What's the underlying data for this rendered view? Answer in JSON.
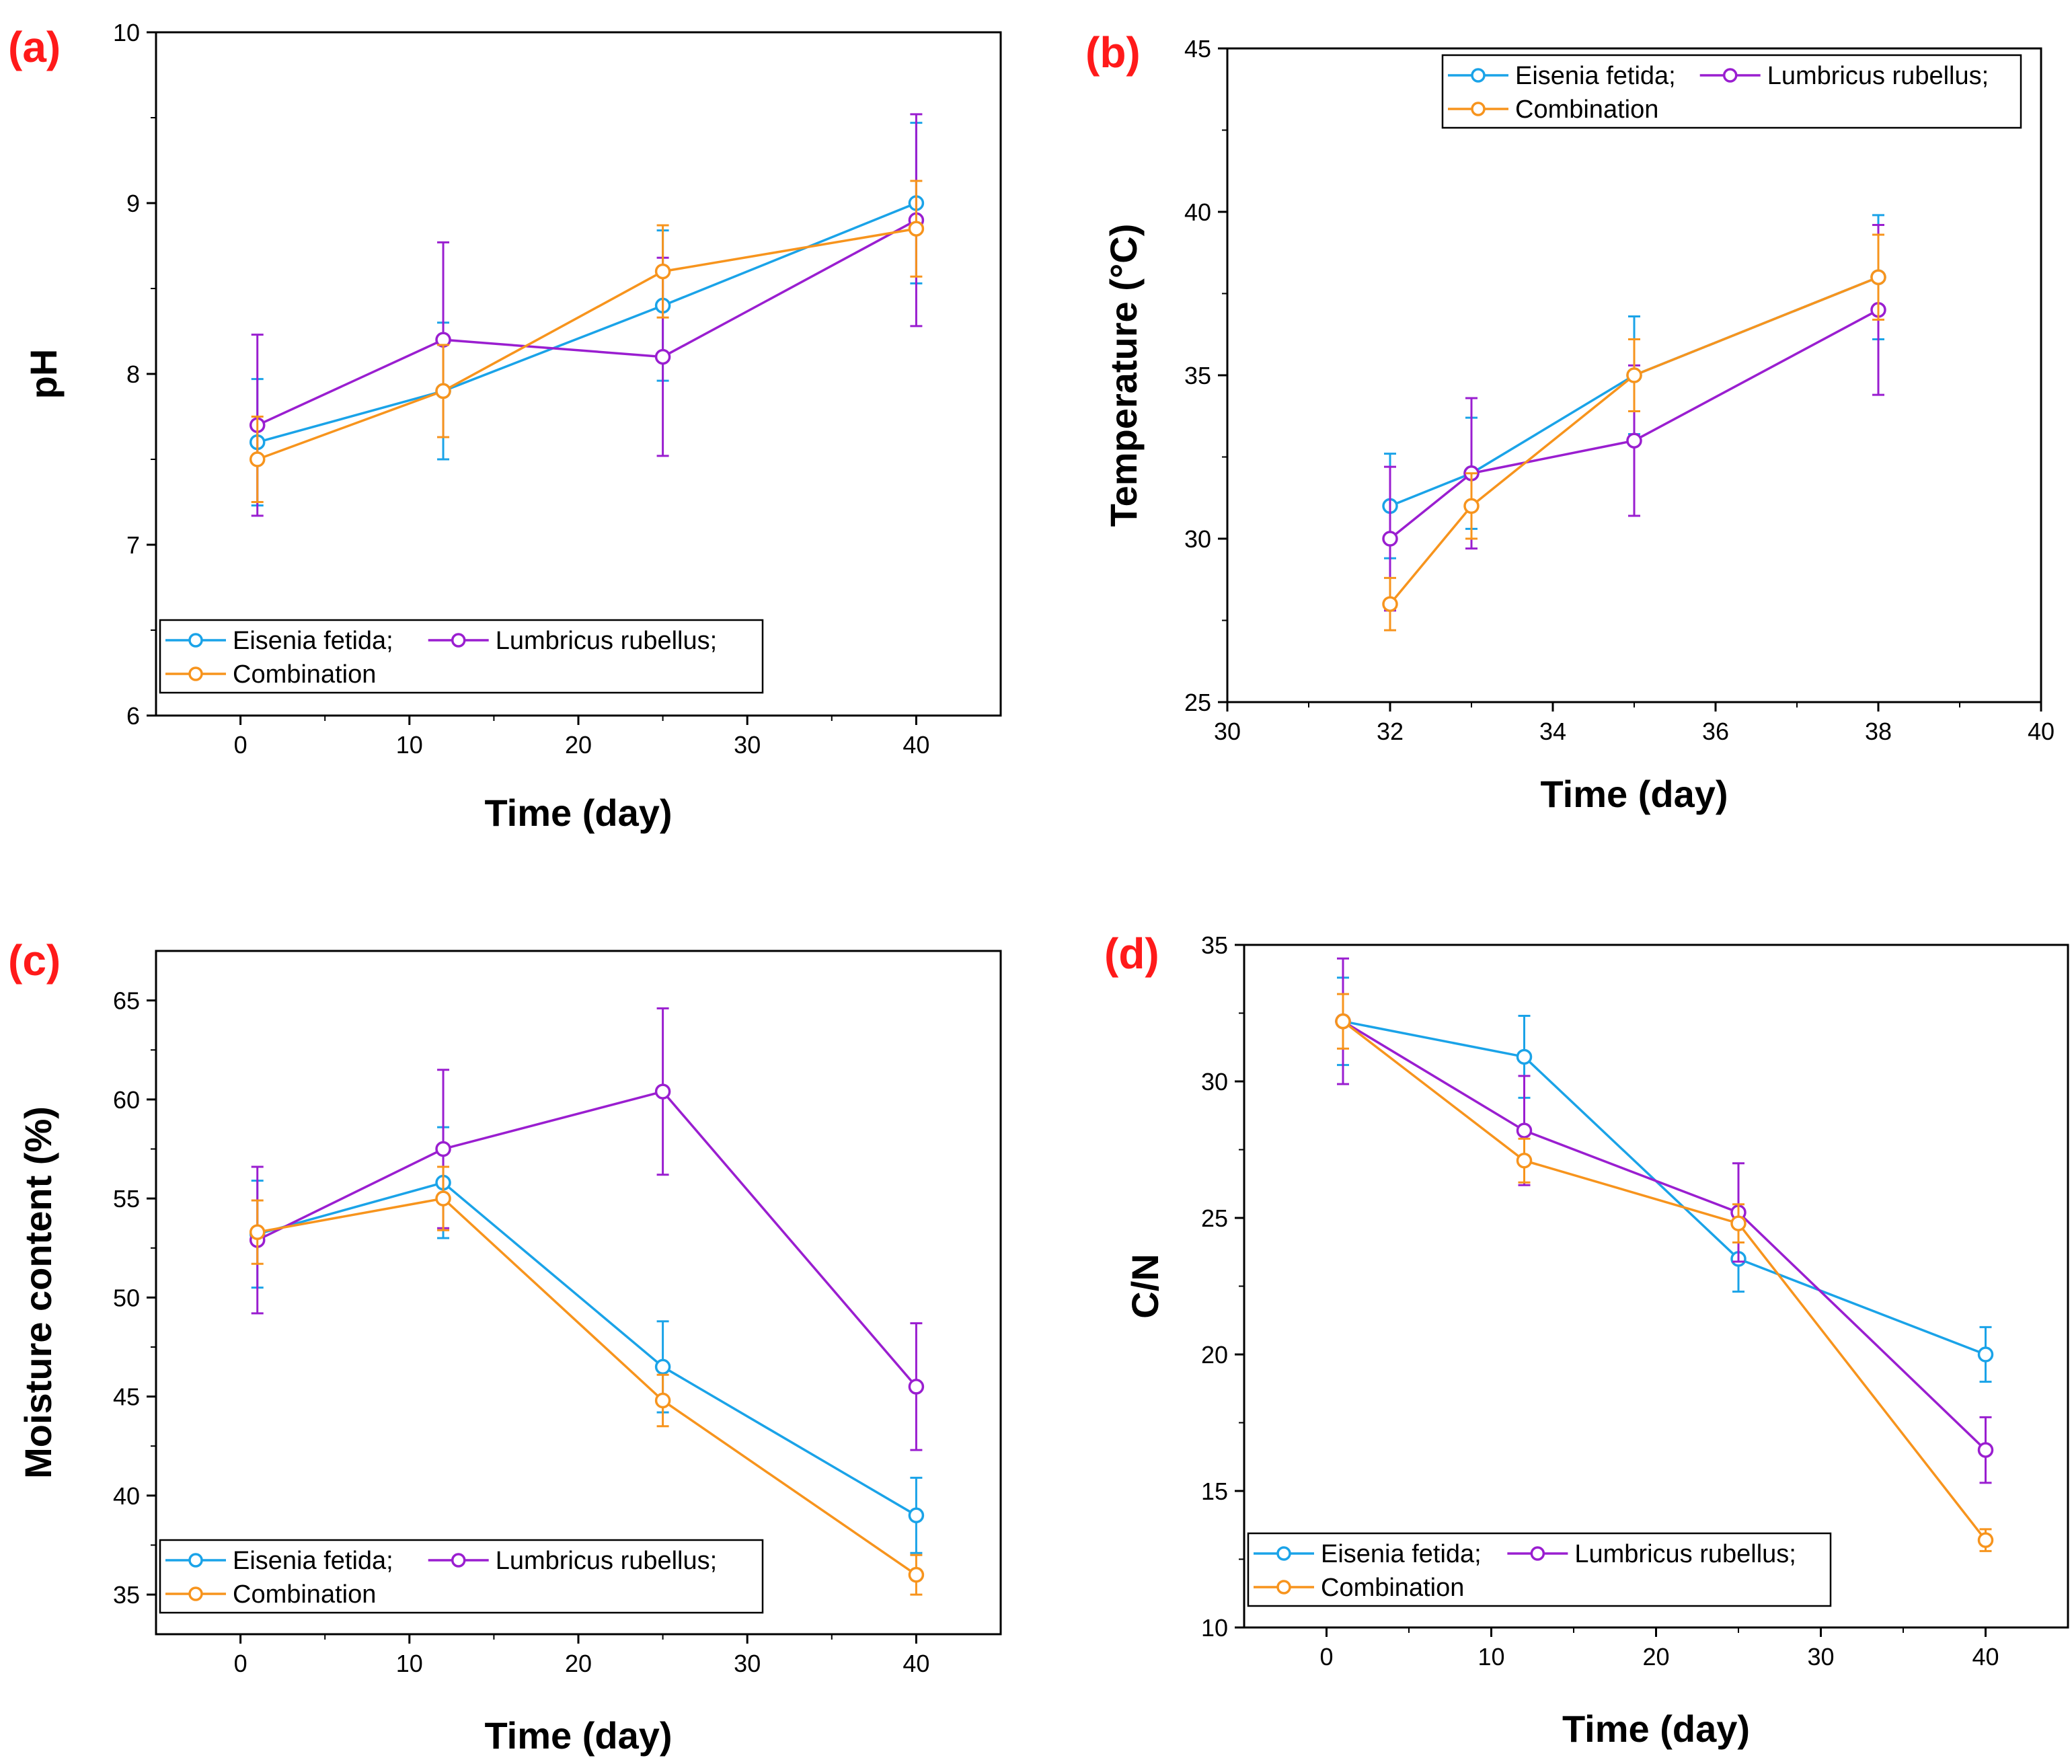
{
  "figure": {
    "colors": {
      "eisenia": "#1aa3e8",
      "lumbricus": "#9a1ed0",
      "combination": "#f7941d",
      "panel_label": "#ff1a1a",
      "axis": "#000000"
    },
    "series_names": [
      "Eisenia fetida;",
      "Lumbricus rubellus;",
      "Combination"
    ]
  },
  "chart_data": [
    {
      "id": "a",
      "type": "line",
      "panel_label": "(a)",
      "xlabel": "Time (day)",
      "ylabel": "pH",
      "xlim": [
        -5,
        45
      ],
      "ylim": [
        6,
        10
      ],
      "xticks": [
        0,
        10,
        20,
        30,
        40
      ],
      "yticks": [
        6,
        7,
        8,
        9,
        10
      ],
      "xtick_labels": [
        "0",
        "10",
        "20",
        "30",
        "40"
      ],
      "ytick_labels": [
        "6",
        "7",
        "8",
        "9",
        "10"
      ],
      "legend": "bottom-left",
      "series": [
        {
          "name": "Eisenia fetida;",
          "x": [
            1,
            12,
            25,
            40
          ],
          "y": [
            7.6,
            7.9,
            8.4,
            9.0
          ],
          "err": [
            0.37,
            0.4,
            0.44,
            0.47
          ]
        },
        {
          "name": "Lumbricus rubellus;",
          "x": [
            1,
            12,
            25,
            40
          ],
          "y": [
            7.7,
            8.2,
            8.1,
            8.9
          ],
          "err": [
            0.53,
            0.57,
            0.58,
            0.62
          ]
        },
        {
          "name": "Combination",
          "x": [
            1,
            12,
            25,
            40
          ],
          "y": [
            7.5,
            7.9,
            8.6,
            8.85
          ],
          "err": [
            0.25,
            0.27,
            0.27,
            0.28
          ]
        }
      ]
    },
    {
      "id": "b",
      "type": "line",
      "panel_label": "(b)",
      "xlabel": "Time (day)",
      "ylabel": "Temperature (°C)",
      "xlim": [
        30,
        40
      ],
      "ylim": [
        25,
        45
      ],
      "xticks": [
        30,
        32,
        34,
        36,
        38,
        40
      ],
      "yticks": [
        25,
        30,
        35,
        40,
        45
      ],
      "xtick_labels": [
        "30",
        "32",
        "34",
        "36",
        "38",
        "40"
      ],
      "ytick_labels": [
        "25",
        "30",
        "35",
        "40",
        "45"
      ],
      "legend": "top-right",
      "series": [
        {
          "name": "Eisenia fetida;",
          "x": [
            32,
            33,
            35,
            38
          ],
          "y": [
            31,
            32,
            35,
            38
          ],
          "err": [
            1.6,
            1.7,
            1.8,
            1.9
          ]
        },
        {
          "name": "Lumbricus rubellus;",
          "x": [
            32,
            33,
            35,
            38
          ],
          "y": [
            30,
            32,
            33,
            37
          ],
          "err": [
            2.2,
            2.3,
            2.3,
            2.6
          ]
        },
        {
          "name": "Combination",
          "x": [
            32,
            33,
            35,
            38
          ],
          "y": [
            28,
            31,
            35,
            38
          ],
          "err": [
            0.8,
            1.0,
            1.1,
            1.3
          ]
        }
      ]
    },
    {
      "id": "c",
      "type": "line",
      "panel_label": "(c)",
      "xlabel": "Time (day)",
      "ylabel": "Moisture content (%)",
      "xlim": [
        -5,
        45
      ],
      "ylim": [
        33,
        67.5
      ],
      "xticks": [
        0,
        10,
        20,
        30,
        40
      ],
      "yticks": [
        35,
        40,
        45,
        50,
        55,
        60,
        65
      ],
      "xtick_labels": [
        "0",
        "10",
        "20",
        "30",
        "40"
      ],
      "ytick_labels": [
        "35",
        "40",
        "45",
        "50",
        "55",
        "60",
        "65"
      ],
      "legend": "bottom-left",
      "series": [
        {
          "name": "Eisenia fetida;",
          "x": [
            1,
            12,
            25,
            40
          ],
          "y": [
            53.2,
            55.8,
            46.5,
            39.0
          ],
          "err": [
            2.7,
            2.8,
            2.3,
            1.9
          ]
        },
        {
          "name": "Lumbricus rubellus;",
          "x": [
            1,
            12,
            25,
            40
          ],
          "y": [
            52.9,
            57.5,
            60.4,
            45.5
          ],
          "err": [
            3.7,
            4.0,
            4.2,
            3.2
          ]
        },
        {
          "name": "Combination",
          "x": [
            1,
            12,
            25,
            40
          ],
          "y": [
            53.3,
            55.0,
            44.8,
            36.0
          ],
          "err": [
            1.6,
            1.6,
            1.3,
            1.0
          ]
        }
      ]
    },
    {
      "id": "d",
      "type": "line",
      "panel_label": "(d)",
      "xlabel": "Time (day)",
      "ylabel": "C/N",
      "xlim": [
        -5,
        45
      ],
      "ylim": [
        10,
        35
      ],
      "xticks": [
        0,
        10,
        20,
        30,
        40
      ],
      "yticks": [
        10,
        15,
        20,
        25,
        30,
        35
      ],
      "xtick_labels": [
        "0",
        "10",
        "20",
        "30",
        "40"
      ],
      "ytick_labels": [
        "10",
        "15",
        "20",
        "25",
        "30",
        "35"
      ],
      "legend": "bottom-left",
      "series": [
        {
          "name": "Eisenia fetida;",
          "x": [
            1,
            12,
            25,
            40
          ],
          "y": [
            32.2,
            30.9,
            23.5,
            20.0
          ],
          "err": [
            1.6,
            1.5,
            1.2,
            1.0
          ]
        },
        {
          "name": "Lumbricus rubellus;",
          "x": [
            1,
            12,
            25,
            40
          ],
          "y": [
            32.2,
            28.2,
            25.2,
            16.5
          ],
          "err": [
            2.3,
            2.0,
            1.8,
            1.2
          ]
        },
        {
          "name": "Combination",
          "x": [
            1,
            12,
            25,
            40
          ],
          "y": [
            32.2,
            27.1,
            24.8,
            13.2
          ],
          "err": [
            1.0,
            0.8,
            0.7,
            0.4
          ]
        }
      ]
    }
  ]
}
